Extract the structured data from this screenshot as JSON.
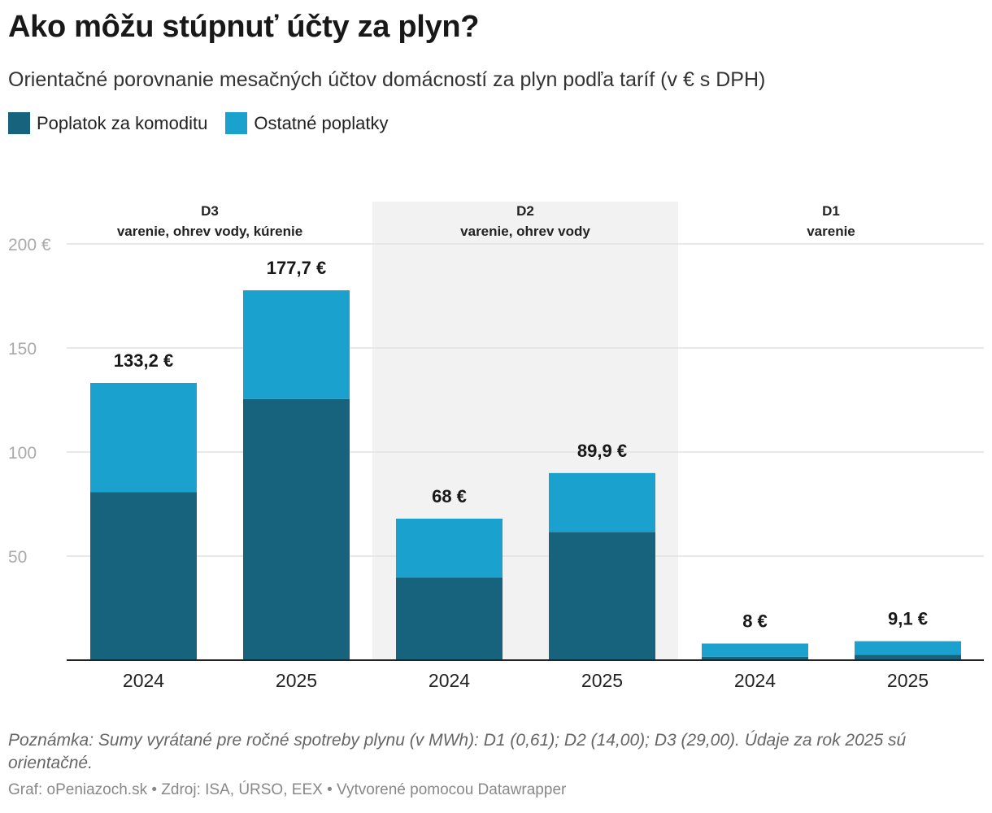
{
  "title": "Ako môžu stúpnuť účty za plyn?",
  "subtitle": "Orientačné porovnanie mesačných účtov domácností za plyn podľa taríf (v € s DPH)",
  "legend": [
    {
      "label": "Poplatok za komoditu",
      "color": "#17627d"
    },
    {
      "label": "Ostatné poplatky",
      "color": "#1aa1cd"
    }
  ],
  "chart_data": {
    "type": "bar",
    "stacked": true,
    "ylim": [
      0,
      200
    ],
    "yticks": [
      50,
      100,
      150,
      200
    ],
    "ytick_labels": [
      "50",
      "100",
      "150",
      "200 €"
    ],
    "grid": true,
    "groups": [
      {
        "name": "D3",
        "desc": "varenie, ohrev vody, kúrenie",
        "shaded": false
      },
      {
        "name": "D2",
        "desc": "varenie, ohrev vody",
        "shaded": true
      },
      {
        "name": "D1",
        "desc": "varenie",
        "shaded": false
      }
    ],
    "categories": [
      "2024",
      "2025",
      "2024",
      "2025",
      "2024",
      "2025"
    ],
    "category_group": [
      0,
      0,
      1,
      1,
      2,
      2
    ],
    "series": [
      {
        "name": "Poplatok za komoditu",
        "color": "#17627d",
        "values": [
          80.8,
          125.5,
          39.7,
          61.6,
          1.6,
          2.6
        ]
      },
      {
        "name": "Ostatné poplatky",
        "color": "#1aa1cd",
        "values": [
          52.4,
          52.2,
          28.3,
          28.3,
          6.4,
          6.5
        ]
      }
    ],
    "totals": [
      133.2,
      177.7,
      68,
      89.9,
      8,
      9.1
    ],
    "total_labels": [
      "133,2 €",
      "177,7 €",
      "68 €",
      "89,9 €",
      "8 €",
      "9,1 €"
    ],
    "group_shade_color": "#f2f2f2",
    "grid_color": "#e2e2e2",
    "axis_color": "#222222"
  },
  "note": "Poznámka: Sumy vyrátané pre ročné spotreby plynu (v MWh): D1 (0,61); D2 (14,00); D3 (29,00). Údaje za rok 2025 sú orientačné.",
  "footer": "Graf: oPeniazoch.sk • Zdroj: ISA, ÚRSO, EEX • Vytvorené pomocou Datawrapper"
}
